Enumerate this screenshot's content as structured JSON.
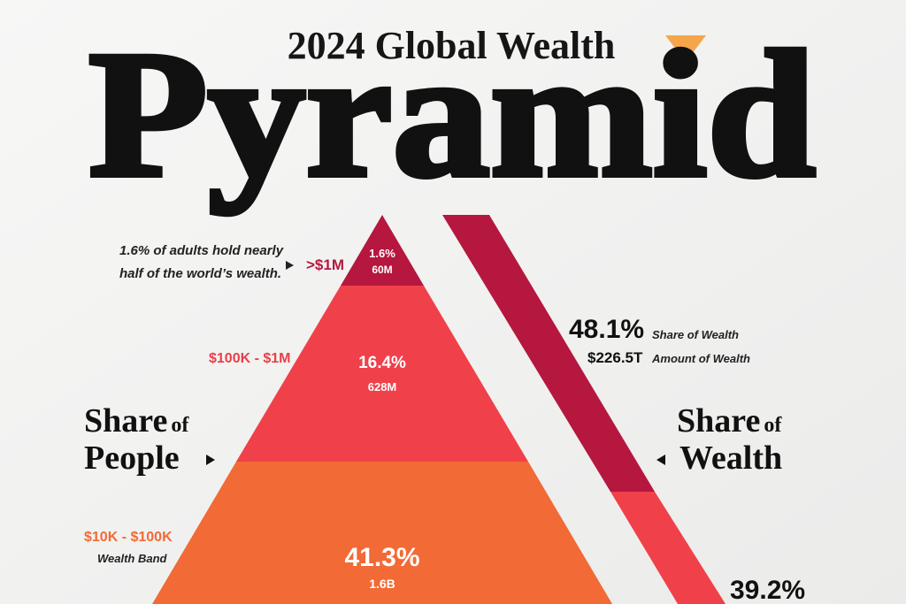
{
  "header": {
    "title": "2024 Global Wealth",
    "headline": "Pyramid"
  },
  "annotation": {
    "line1": "1.6% of adults hold nearly",
    "line2": "half of the world’s wealth."
  },
  "left_label": {
    "line1_big": "Share",
    "line1_small": "of",
    "line2": "People"
  },
  "right_label": {
    "line1_big": "Share",
    "line1_small": "of",
    "line2": "Wealth"
  },
  "tiers": [
    {
      "band": ">$1M",
      "people_share": "1.6%",
      "people_count": "60M"
    },
    {
      "band": "$100K - $1M",
      "people_share": "16.4%",
      "people_count": "628M"
    },
    {
      "band": "$10K - $100K",
      "band_caption": "Wealth Band",
      "people_share": "41.3%",
      "people_count": "1.6B"
    }
  ],
  "wealth": [
    {
      "share": "48.1%",
      "share_caption": "Share of Wealth",
      "amount": "$226.5T",
      "amount_caption": "Amount of Wealth"
    },
    {
      "share": "39.2%"
    }
  ]
}
